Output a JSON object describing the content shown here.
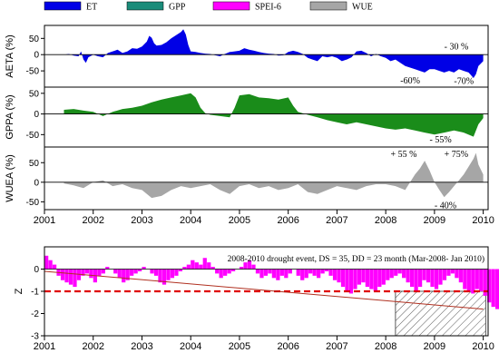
{
  "chart_data": [
    {
      "type": "area",
      "panel": "AETA",
      "ylabel": "AETA (%)",
      "ylim": [
        -100,
        90
      ],
      "yticks": [
        50,
        0,
        -50
      ],
      "color": "#0000e6",
      "annotations": [
        {
          "text": "- 30 %",
          "x": 2009.2,
          "y": 25
        },
        {
          "text": "-60%",
          "x": 2008.3,
          "y": -80
        },
        {
          "text": "-70%",
          "x": 2009.4,
          "y": -82
        }
      ],
      "x": [
        2001.4,
        2001.5,
        2001.6,
        2001.7,
        2001.75,
        2001.8,
        2001.85,
        2001.9,
        2002.0,
        2002.1,
        2002.2,
        2002.3,
        2002.4,
        2002.5,
        2002.6,
        2002.7,
        2002.8,
        2002.9,
        2003.0,
        2003.1,
        2003.15,
        2003.2,
        2003.25,
        2003.3,
        2003.4,
        2003.5,
        2003.6,
        2003.7,
        2003.8,
        2003.85,
        2003.9,
        2003.95,
        2004.0,
        2004.1,
        2004.2,
        2004.3,
        2004.4,
        2004.5,
        2004.6,
        2004.7,
        2004.8,
        2004.9,
        2005.0,
        2005.1,
        2005.2,
        2005.3,
        2005.4,
        2005.5,
        2005.6,
        2005.7,
        2005.8,
        2005.9,
        2006.0,
        2006.1,
        2006.2,
        2006.3,
        2006.4,
        2006.5,
        2006.6,
        2006.7,
        2006.8,
        2006.9,
        2007.0,
        2007.1,
        2007.2,
        2007.3,
        2007.4,
        2007.5,
        2007.6,
        2007.7,
        2007.8,
        2007.9,
        2008.0,
        2008.1,
        2008.2,
        2008.3,
        2008.4,
        2008.5,
        2008.6,
        2008.7,
        2008.8,
        2008.9,
        2009.0,
        2009.1,
        2009.2,
        2009.3,
        2009.4,
        2009.5,
        2009.6,
        2009.7,
        2009.8,
        2009.85,
        2009.9,
        2010.0
      ],
      "values": [
        0,
        2,
        -3,
        -5,
        10,
        -15,
        -25,
        -8,
        0,
        -5,
        -8,
        5,
        10,
        15,
        5,
        10,
        20,
        18,
        25,
        40,
        58,
        52,
        35,
        28,
        30,
        38,
        50,
        60,
        70,
        78,
        62,
        30,
        10,
        8,
        5,
        3,
        2,
        -2,
        -5,
        2,
        8,
        10,
        12,
        20,
        15,
        12,
        8,
        5,
        3,
        2,
        -3,
        -2,
        8,
        12,
        8,
        2,
        -10,
        -15,
        -20,
        -5,
        -8,
        -5,
        -10,
        -20,
        -15,
        -8,
        10,
        12,
        5,
        -5,
        2,
        -5,
        -10,
        -20,
        -15,
        -25,
        -35,
        -40,
        -45,
        -50,
        -55,
        -45,
        -45,
        -50,
        -55,
        -50,
        -55,
        -45,
        -50,
        -55,
        -72,
        -60,
        -35,
        -20
      ]
    },
    {
      "type": "area",
      "panel": "GPPA",
      "ylabel": "GPPA (%)",
      "ylim": [
        -80,
        65
      ],
      "yticks": [
        50,
        0,
        -50
      ],
      "color": "#1a8c1a",
      "annotations": [
        {
          "text": "- 55%",
          "x": 2008.9,
          "y": -62
        }
      ],
      "x": [
        2001.4,
        2001.6,
        2001.8,
        2002.0,
        2002.2,
        2002.4,
        2002.6,
        2002.8,
        2003.0,
        2003.2,
        2003.4,
        2003.6,
        2003.8,
        2004.0,
        2004.1,
        2004.2,
        2004.3,
        2004.4,
        2004.6,
        2004.8,
        2004.9,
        2005.0,
        2005.2,
        2005.4,
        2005.6,
        2005.8,
        2006.0,
        2006.1,
        2006.2,
        2006.4,
        2006.6,
        2006.8,
        2007.0,
        2007.2,
        2007.4,
        2007.6,
        2007.8,
        2008.0,
        2008.2,
        2008.4,
        2008.6,
        2008.8,
        2009.0,
        2009.2,
        2009.4,
        2009.6,
        2009.8,
        2009.9,
        2010.0
      ],
      "values": [
        10,
        12,
        8,
        5,
        -5,
        5,
        12,
        15,
        20,
        28,
        35,
        40,
        45,
        50,
        40,
        15,
        2,
        -2,
        -5,
        -8,
        15,
        45,
        48,
        40,
        38,
        35,
        40,
        20,
        5,
        -2,
        -8,
        -15,
        -20,
        -25,
        -20,
        -25,
        -30,
        -35,
        -38,
        -35,
        -40,
        -45,
        -50,
        -45,
        -40,
        -45,
        -55,
        -25,
        -10
      ]
    },
    {
      "type": "area",
      "panel": "WUEA",
      "ylabel": "WUEA (%)",
      "ylim": [
        -70,
        90
      ],
      "yticks": [
        50,
        0,
        -50
      ],
      "color": "#a6a6a6",
      "annotations": [
        {
          "text": "+ 55 %",
          "x": 2008.1,
          "y": 72
        },
        {
          "text": "+ 75%",
          "x": 2009.2,
          "y": 72
        },
        {
          "text": "- 40%",
          "x": 2009.0,
          "y": -60
        }
      ],
      "x": [
        2001.4,
        2001.6,
        2001.8,
        2002.0,
        2002.2,
        2002.4,
        2002.6,
        2002.8,
        2003.0,
        2003.2,
        2003.4,
        2003.6,
        2003.8,
        2004.0,
        2004.2,
        2004.4,
        2004.6,
        2004.8,
        2005.0,
        2005.2,
        2005.4,
        2005.6,
        2005.8,
        2006.0,
        2006.2,
        2006.4,
        2006.6,
        2006.8,
        2007.0,
        2007.2,
        2007.4,
        2007.6,
        2007.8,
        2008.0,
        2008.2,
        2008.4,
        2008.5,
        2008.6,
        2008.7,
        2008.8,
        2008.9,
        2009.0,
        2009.1,
        2009.2,
        2009.3,
        2009.4,
        2009.5,
        2009.6,
        2009.7,
        2009.8,
        2009.85,
        2009.9,
        2010.0
      ],
      "values": [
        -3,
        -8,
        -15,
        0,
        5,
        -10,
        -5,
        -15,
        -20,
        -40,
        -35,
        -20,
        -10,
        -15,
        -10,
        -5,
        -20,
        -30,
        -10,
        -5,
        -15,
        -10,
        -20,
        -15,
        -5,
        -25,
        -30,
        -20,
        -10,
        -15,
        -20,
        -10,
        -5,
        -5,
        -10,
        -20,
        0,
        20,
        35,
        55,
        30,
        0,
        -20,
        -38,
        -25,
        -10,
        5,
        20,
        40,
        60,
        75,
        45,
        20
      ]
    },
    {
      "type": "bar",
      "panel": "SPEI-6",
      "ylabel": "Z",
      "ylim": [
        -3,
        1
      ],
      "yticks": [
        0,
        -1,
        -2,
        -3
      ],
      "color": "#ff00ff",
      "threshold": -1,
      "trend": {
        "from": [
          2001.0,
          -0.1
        ],
        "to": [
          2010.0,
          -1.8
        ]
      },
      "drought_event": {
        "start": 2008.2,
        "end": 2010.05,
        "floor": -3
      },
      "x_start": 2001.0,
      "x_step": 0.08333,
      "annotation": "2008-2010 drought event, DS = 35, DD = 23 month (Mar-2008- Jan 2010)",
      "values": [
        0.6,
        0.4,
        0.2,
        -0.3,
        -0.5,
        -0.6,
        -0.7,
        -0.8,
        -0.5,
        -0.3,
        -0.2,
        -0.4,
        -0.6,
        -0.3,
        -0.2,
        0.1,
        0.0,
        -0.2,
        -0.4,
        -0.6,
        -0.5,
        -0.3,
        -0.2,
        -0.1,
        0.1,
        0.0,
        -0.2,
        -0.3,
        -0.6,
        -0.7,
        -0.5,
        -0.4,
        -0.3,
        -0.1,
        0.1,
        0.2,
        0.4,
        0.3,
        0.2,
        0.5,
        0.3,
        0.1,
        -0.2,
        -0.4,
        -0.3,
        -0.2,
        -0.1,
        0.0,
        0.1,
        0.3,
        0.4,
        0.2,
        -0.2,
        -0.4,
        -0.3,
        -0.2,
        -0.4,
        -0.5,
        -0.3,
        -0.4,
        -0.2,
        0.0,
        -0.3,
        -0.5,
        -0.4,
        -0.2,
        -0.3,
        -0.4,
        -0.2,
        -0.1,
        -0.3,
        -0.5,
        -0.6,
        -0.8,
        -1.0,
        -1.1,
        -0.9,
        -0.7,
        -0.6,
        -0.8,
        -0.9,
        -1.0,
        -0.8,
        -0.7,
        -0.5,
        -0.4,
        -0.3,
        -0.2,
        -0.4,
        -0.6,
        -0.8,
        -1.0,
        -0.8,
        -0.5,
        -0.6,
        -0.8,
        -0.9,
        -0.7,
        -0.5,
        -0.3,
        -0.2,
        -0.4,
        -0.6,
        -0.9,
        -1.0,
        -1.1,
        -0.9,
        -1.0,
        -1.2,
        -1.5,
        -1.7,
        -1.8,
        -2.0,
        -2.3,
        -2.5,
        -2.4,
        -2.2,
        -2.0,
        -1.8,
        -1.6,
        -1.9,
        -2.1,
        -1.8,
        -1.6,
        -1.4,
        -1.3,
        -1.5,
        -1.7,
        -1.9,
        -1.6,
        -1.3,
        -1.1,
        -1.2,
        -1.4,
        -1.6,
        -1.2
      ]
    }
  ],
  "legend": [
    {
      "label": "ET",
      "color": "#0000e6"
    },
    {
      "label": "GPP",
      "color": "#1a8c7a"
    },
    {
      "label": "SPEI-6",
      "color": "#ff00ff"
    },
    {
      "label": "WUE",
      "color": "#a6a6a6"
    }
  ],
  "xaxis": {
    "ticks": [
      "2001",
      "2002",
      "2003",
      "2004",
      "2005",
      "2006",
      "2007",
      "2008",
      "2009",
      "2010"
    ],
    "range": [
      2001,
      2010.1
    ]
  }
}
